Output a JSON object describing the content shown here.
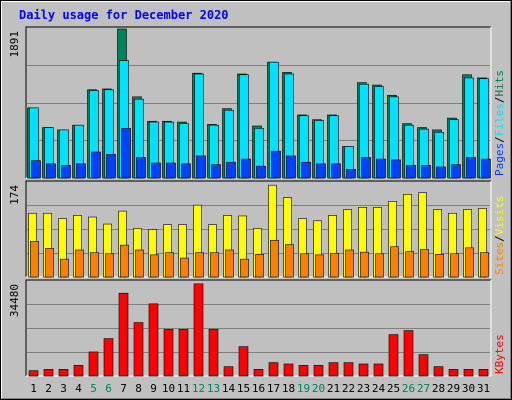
{
  "chart_data": {
    "type": "bar",
    "title": "Daily usage for December 2020",
    "days": [
      "1",
      "2",
      "3",
      "4",
      "5",
      "6",
      "7",
      "8",
      "9",
      "10",
      "11",
      "12",
      "13",
      "14",
      "15",
      "16",
      "17",
      "18",
      "19",
      "20",
      "21",
      "22",
      "23",
      "24",
      "25",
      "26",
      "27",
      "28",
      "29",
      "30",
      "31"
    ],
    "weekend_days": [
      "5",
      "6",
      "12",
      "13",
      "19",
      "20",
      "26",
      "27"
    ],
    "colors": {
      "hits": "#00805c",
      "files": "#00e0ff",
      "pages": "#0040ff",
      "visits": "#ffff00",
      "sites": "#ff8000",
      "kbytes": "#ff0000",
      "weekday_label": "#000000",
      "weekend_label": "#00805c",
      "title": "#0000ff"
    },
    "panels": [
      {
        "id": "hits_panel",
        "max_label": "1891",
        "ymax": 1891,
        "legend": [
          "Pages",
          "/",
          "Files",
          "/",
          "Hits"
        ],
        "series": [
          {
            "name": "Hits",
            "values": [
              890,
              640,
              610,
              670,
              1120,
              1130,
              1891,
              1030,
              720,
              720,
              710,
              1330,
              680,
              880,
              1320,
              660,
              1470,
              1340,
              800,
              740,
              800,
              400,
              1210,
              1180,
              1050,
              690,
              640,
              610,
              760,
              1310,
              1270
            ]
          },
          {
            "name": "Files",
            "values": [
              890,
              640,
              610,
              670,
              1110,
              1120,
              1490,
              1000,
              710,
              710,
              690,
              1320,
              670,
              860,
              1310,
              630,
              1470,
              1320,
              790,
              730,
              790,
              400,
              1190,
              1160,
              1030,
              670,
              620,
              580,
              740,
              1270,
              1260
            ]
          },
          {
            "name": "Pages",
            "values": [
              220,
              180,
              160,
              180,
              330,
              300,
              630,
              260,
              190,
              190,
              180,
              280,
              170,
              200,
              240,
              150,
              340,
              280,
              200,
              180,
              180,
              110,
              260,
              240,
              230,
              160,
              160,
              140,
              170,
              260,
              240
            ]
          }
        ]
      },
      {
        "id": "visits_panel",
        "max_label": "174",
        "ymax": 174,
        "legend": [
          "Sites",
          "/",
          "Visits"
        ],
        "series": [
          {
            "name": "Visits",
            "values": [
              118,
              118,
              108,
              114,
              111,
              98,
              122,
              90,
              88,
              97,
              97,
              133,
              97,
              114,
              113,
              90,
              170,
              147,
              108,
              104,
              114,
              125,
              129,
              129,
              140,
              153,
              156,
              125,
              118,
              125,
              127
            ]
          },
          {
            "name": "Sites",
            "values": [
              66,
              53,
              33,
              50,
              45,
              43,
              59,
              50,
              41,
              45,
              35,
              45,
              45,
              50,
              33,
              42,
              68,
              60,
              43,
              41,
              44,
              50,
              46,
              43,
              56,
              47,
              51,
              42,
              43,
              54,
              45
            ]
          }
        ]
      },
      {
        "id": "kbytes_panel",
        "max_label": "34480",
        "ymax": 34480,
        "legend": [
          "KBytes"
        ],
        "series": [
          {
            "name": "KBytes",
            "values": [
              1960,
              2450,
              2450,
              3920,
              8820,
              13720,
              30380,
              19600,
              26460,
              17150,
              17150,
              33810,
              17150,
              3430,
              10780,
              2450,
              4900,
              4410,
              3920,
              3920,
              4900,
              4900,
              4410,
              4410,
              15190,
              16660,
              7840,
              3430,
              2450,
              2450,
              2450
            ]
          }
        ]
      }
    ]
  }
}
